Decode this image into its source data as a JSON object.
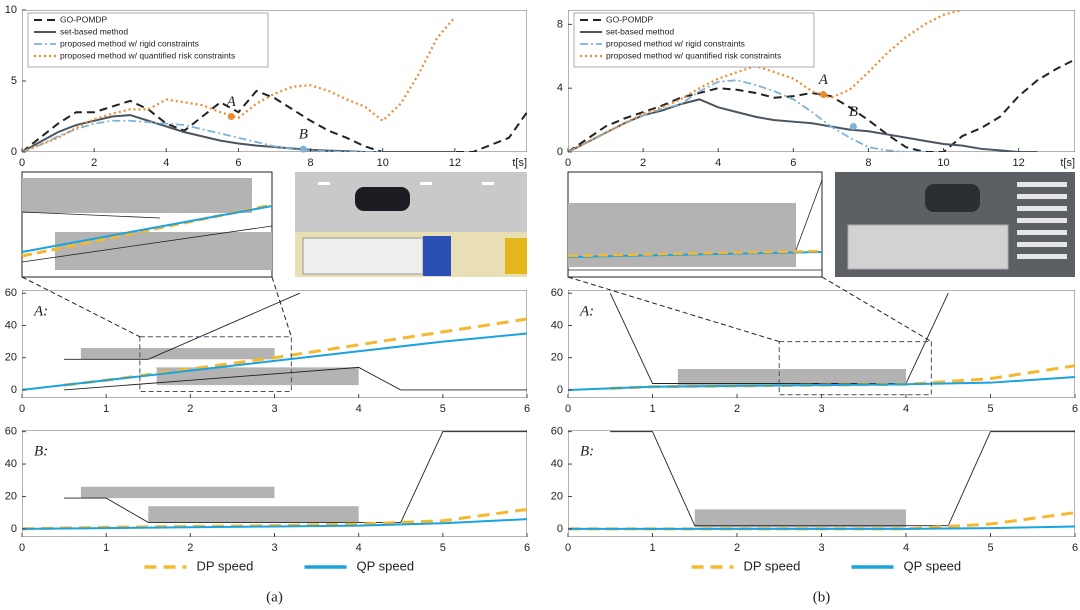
{
  "chart_data": [
    {
      "type": "line",
      "xlabel": "t[s]",
      "xlim": [
        0,
        14
      ],
      "ylim": [
        0,
        10
      ],
      "xticks": [
        0,
        2,
        4,
        6,
        8,
        10,
        12
      ],
      "yticks": [
        0,
        5,
        10
      ],
      "legend": "upper-left",
      "caption": "(a)",
      "series": [
        {
          "name": "GO-POMDP",
          "color": "#222222",
          "style": "dashed",
          "x": [
            0,
            0.5,
            1,
            1.5,
            2,
            2.5,
            3,
            3.5,
            4,
            4.5,
            5,
            5.5,
            6,
            6.5,
            7,
            7.5,
            8,
            8.5,
            9,
            9.5,
            10,
            10.5,
            11,
            11.5,
            12,
            12.5,
            13,
            13.5,
            14
          ],
          "values": [
            0,
            1,
            2,
            2.8,
            2.8,
            3.2,
            3.6,
            3,
            2,
            1.5,
            2.5,
            3.5,
            2.8,
            4.3,
            3.8,
            3,
            2.2,
            1.5,
            1,
            0.4,
            0,
            0,
            0,
            0,
            0,
            0,
            0.5,
            1,
            2.8
          ]
        },
        {
          "name": "set-based method",
          "color": "#4a5560",
          "style": "solid",
          "x": [
            0,
            0.5,
            1,
            1.5,
            2,
            2.5,
            3,
            3.5,
            4,
            4.5,
            5,
            5.5,
            6,
            6.5,
            7,
            7.5,
            8,
            8.5,
            9,
            9.5,
            10,
            10.5,
            11,
            11.5,
            12
          ],
          "values": [
            0,
            0.7,
            1.4,
            1.9,
            2.2,
            2.5,
            2.6,
            2.2,
            1.8,
            1.4,
            1.1,
            0.8,
            0.6,
            0.45,
            0.35,
            0.25,
            0.15,
            0.1,
            0.05,
            0,
            0,
            0,
            0,
            0,
            0
          ]
        },
        {
          "name": "proposed method w/ rigid constraints",
          "color": "#7fb3d5",
          "style": "dashdot",
          "x": [
            0,
            0.5,
            1,
            1.5,
            2,
            2.5,
            3,
            3.5,
            4,
            4.5,
            5,
            5.5,
            6,
            6.5,
            7,
            7.5,
            8,
            8.5,
            9,
            9.5,
            10
          ],
          "values": [
            0,
            0.5,
            1.1,
            1.6,
            2,
            2.2,
            2.2,
            2.1,
            2,
            1.9,
            1.6,
            1.3,
            1,
            0.7,
            0.4,
            0.2,
            0.1,
            0.05,
            0,
            0,
            0
          ]
        },
        {
          "name": "proposed method w/ quantified risk constraints",
          "color": "#ee8a2e",
          "style": "dotted",
          "x": [
            0,
            0.5,
            1,
            1.5,
            2,
            2.5,
            3,
            3.5,
            4,
            4.5,
            5,
            5.5,
            6,
            6.5,
            7,
            7.5,
            8,
            8.5,
            9,
            9.5,
            10,
            10.5,
            11,
            11.5,
            12
          ],
          "values": [
            0,
            0.5,
            1,
            1.7,
            2.3,
            2.7,
            3,
            3,
            3.7,
            3.5,
            3.3,
            2.8,
            2.4,
            3.4,
            4.1,
            4.6,
            4.7,
            4.3,
            3.7,
            3.2,
            2.2,
            3.4,
            5.5,
            8,
            9.5
          ]
        }
      ],
      "annotations": [
        {
          "text": "A",
          "x": 5.8,
          "y": 2.5,
          "color": "#ee8a2e"
        },
        {
          "text": "B",
          "x": 7.8,
          "y": 0.2,
          "color": "#7fb3d5"
        }
      ]
    },
    {
      "type": "line",
      "label": "A:",
      "xlim": [
        0,
        6
      ],
      "ylim": [
        -5,
        62
      ],
      "xticks": [
        0,
        1,
        2,
        3,
        4,
        5,
        6
      ],
      "yticks": [
        0,
        20,
        40,
        60
      ],
      "series": [
        {
          "color": "#f5b82e",
          "style": "longdash",
          "x": [
            0.5,
            1,
            2,
            3,
            4,
            5,
            6
          ],
          "values": [
            3,
            6,
            13,
            20,
            28,
            36,
            44
          ]
        },
        {
          "color": "#1aa3df",
          "style": "solid",
          "x": [
            0,
            1,
            2,
            3,
            4,
            5,
            6
          ],
          "values": [
            0,
            6,
            12,
            18,
            24,
            30,
            35
          ]
        }
      ],
      "obstacles": [
        {
          "t": [
            0.7,
            3
          ],
          "s": [
            19,
            26
          ]
        },
        {
          "t": [
            1.6,
            4
          ],
          "s": [
            3,
            14
          ]
        }
      ],
      "bounds": [
        {
          "x": [
            0.5,
            1.5,
            3.3
          ],
          "y": [
            19,
            19,
            60
          ]
        },
        {
          "x": [
            0.5,
            4,
            4.5,
            6
          ],
          "y": [
            0,
            14,
            0,
            0
          ]
        }
      ],
      "zoom_box": {
        "x": [
          1.4,
          3.2
        ],
        "y": [
          -1,
          33
        ]
      }
    },
    {
      "type": "line",
      "label": "B:",
      "xlim": [
        0,
        6
      ],
      "ylim": [
        -5,
        61
      ],
      "xticks": [
        0,
        1,
        2,
        3,
        4,
        5,
        6
      ],
      "yticks": [
        0,
        20,
        40,
        60
      ],
      "legend": "below",
      "series": [
        {
          "name": "DP speed",
          "color": "#f5b82e",
          "style": "longdash",
          "x": [
            0,
            1,
            2,
            3,
            4,
            5,
            6
          ],
          "values": [
            0,
            1,
            1.5,
            2,
            3,
            5,
            12
          ]
        },
        {
          "name": "QP speed",
          "color": "#1aa3df",
          "style": "solid",
          "x": [
            0,
            1,
            2,
            3,
            4,
            5,
            6
          ],
          "values": [
            0,
            0.5,
            1,
            1.5,
            2,
            3.5,
            6
          ]
        }
      ],
      "obstacles": [
        {
          "t": [
            0.7,
            3
          ],
          "s": [
            19,
            26
          ]
        },
        {
          "t": [
            1.5,
            4
          ],
          "s": [
            4,
            14
          ]
        }
      ],
      "bounds": [
        {
          "x": [
            0.5,
            1,
            1.5,
            4.5,
            5,
            6
          ],
          "y": [
            19,
            19,
            4,
            4,
            60,
            60
          ]
        }
      ]
    },
    {
      "type": "line",
      "xlabel": "t[s]",
      "xlim": [
        0,
        13.5
      ],
      "ylim": [
        0,
        8.9
      ],
      "xticks": [
        0,
        2,
        4,
        6,
        8,
        10,
        12
      ],
      "yticks": [
        0,
        4,
        8
      ],
      "legend": "upper-left",
      "caption": "(b)",
      "series": [
        {
          "name": "GO-POMDP",
          "color": "#222222",
          "style": "dashed",
          "x": [
            0,
            0.5,
            1,
            1.5,
            2,
            2.5,
            3,
            3.5,
            4,
            4.5,
            5,
            5.5,
            6,
            6.5,
            7,
            7.5,
            8,
            8.5,
            9,
            9.5,
            10,
            10.5,
            11,
            11.5,
            12,
            12.5,
            13,
            13.5
          ],
          "values": [
            0,
            0.8,
            1.6,
            2.1,
            2.5,
            2.9,
            3.4,
            3.7,
            4,
            3.9,
            3.7,
            3.4,
            3.5,
            3.7,
            3.5,
            2.8,
            2,
            1.1,
            0.3,
            0,
            0,
            1,
            1.5,
            2.2,
            3.5,
            4.5,
            5.2,
            5.8
          ]
        },
        {
          "name": "set-based method",
          "color": "#4a5560",
          "style": "solid",
          "x": [
            0,
            0.5,
            1,
            1.5,
            2,
            2.5,
            3,
            3.5,
            4,
            4.5,
            5,
            5.5,
            6,
            6.5,
            7,
            7.5,
            8,
            8.5,
            9,
            9.5,
            10,
            10.5,
            11,
            11.5,
            12,
            12.5
          ],
          "values": [
            0,
            0.6,
            1.2,
            1.8,
            2.3,
            2.6,
            3,
            3.3,
            2.8,
            2.5,
            2.2,
            2,
            1.9,
            1.8,
            1.6,
            1.4,
            1.3,
            1.1,
            0.9,
            0.7,
            0.5,
            0.4,
            0.2,
            0.1,
            0,
            0
          ]
        },
        {
          "name": "proposed method w/ rigid constraints",
          "color": "#7fb3d5",
          "style": "dashdot",
          "x": [
            0,
            0.5,
            1,
            1.5,
            2,
            2.5,
            3,
            3.5,
            4,
            4.5,
            5,
            5.5,
            6,
            6.5,
            7,
            7.5,
            8,
            8.5,
            9,
            9.5
          ],
          "values": [
            0,
            0.6,
            1.2,
            1.8,
            2.3,
            2.7,
            3,
            3.8,
            4.4,
            4.5,
            4.2,
            3.8,
            3.3,
            2.5,
            1.6,
            0.9,
            0.3,
            0.1,
            0,
            0
          ]
        },
        {
          "name": "proposed method w/ quantified risk constraints",
          "color": "#ee8a2e",
          "style": "dotted",
          "x": [
            0,
            0.5,
            1,
            1.5,
            2,
            2.5,
            3,
            3.5,
            4,
            4.5,
            5,
            5.5,
            6,
            6.5,
            7,
            7.5,
            8,
            8.5,
            9,
            9.5,
            10,
            10.5
          ],
          "values": [
            0,
            0.6,
            1.2,
            1.8,
            2.4,
            2.8,
            3.3,
            4,
            4.6,
            5,
            5.4,
            5,
            4.6,
            3.8,
            3.4,
            3.9,
            5,
            6.2,
            7.2,
            8,
            8.6,
            8.9
          ]
        }
      ],
      "annotations": [
        {
          "text": "A",
          "x": 6.8,
          "y": 3.6,
          "color": "#ee8a2e"
        },
        {
          "text": "B",
          "x": 7.6,
          "y": 1.6,
          "color": "#7fb3d5"
        }
      ]
    },
    {
      "type": "line",
      "label": "A:",
      "xlim": [
        0,
        6
      ],
      "ylim": [
        -5,
        62
      ],
      "xticks": [
        0,
        1,
        2,
        3,
        4,
        5,
        6
      ],
      "yticks": [
        0,
        20,
        40,
        60
      ],
      "series": [
        {
          "color": "#f5b82e",
          "style": "longdash",
          "x": [
            0.5,
            1,
            2,
            3,
            4,
            5,
            6
          ],
          "values": [
            1,
            2,
            2.5,
            3,
            3.5,
            7,
            15
          ]
        },
        {
          "color": "#1aa3df",
          "style": "solid",
          "x": [
            0,
            1,
            2,
            3,
            4,
            5,
            6
          ],
          "values": [
            0,
            2,
            2.5,
            3,
            3.5,
            4.5,
            8
          ]
        }
      ],
      "obstacles": [
        {
          "t": [
            1.3,
            4
          ],
          "s": [
            3,
            13
          ]
        }
      ],
      "bounds": [
        {
          "x": [
            0.5,
            1,
            4,
            4.5
          ],
          "y": [
            60,
            4,
            4,
            60
          ]
        }
      ],
      "zoom_box": {
        "x": [
          2.5,
          4.3
        ],
        "y": [
          -3,
          30
        ]
      }
    },
    {
      "type": "line",
      "label": "B:",
      "xlim": [
        0,
        6
      ],
      "ylim": [
        -5,
        61
      ],
      "xticks": [
        0,
        1,
        2,
        3,
        4,
        5,
        6
      ],
      "yticks": [
        0,
        20,
        40,
        60
      ],
      "legend": "below",
      "series": [
        {
          "name": "DP speed",
          "color": "#f5b82e",
          "style": "longdash",
          "x": [
            0,
            1,
            2,
            3,
            4,
            5,
            6
          ],
          "values": [
            0,
            0,
            0,
            0,
            0,
            3,
            10
          ]
        },
        {
          "name": "QP speed",
          "color": "#1aa3df",
          "style": "solid",
          "x": [
            0,
            1,
            2,
            3,
            4,
            5,
            6
          ],
          "values": [
            0,
            0,
            0,
            0,
            0,
            0.5,
            1.5
          ]
        }
      ],
      "obstacles": [
        {
          "t": [
            1.5,
            4
          ],
          "s": [
            1,
            12
          ]
        }
      ],
      "bounds": [
        {
          "x": [
            0.5,
            1,
            1.5,
            4.5,
            5,
            6
          ],
          "y": [
            60,
            60,
            2,
            2,
            60,
            60
          ]
        }
      ]
    }
  ]
}
